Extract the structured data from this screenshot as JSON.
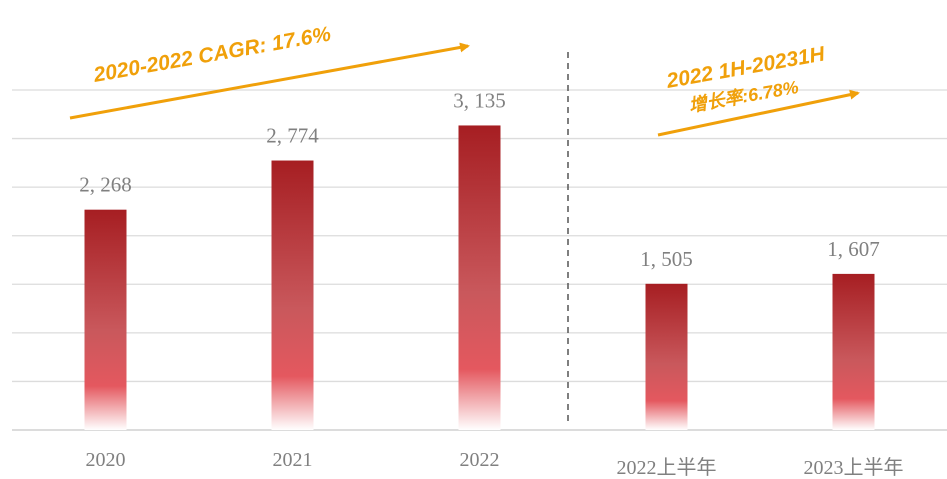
{
  "chart_data": {
    "type": "bar",
    "categories": [
      "2020",
      "2021",
      "2022",
      "2022上半年",
      "2023上半年"
    ],
    "values": [
      2268,
      2774,
      3135,
      1505,
      1607
    ],
    "value_labels": [
      "2, 268",
      "2, 774",
      "3, 135",
      "1, 505",
      "1, 607"
    ],
    "color": "#a61e22",
    "ylim": [
      0,
      3500
    ],
    "yticks": [
      0,
      500,
      1000,
      1500,
      2000,
      2500,
      3000,
      3500
    ],
    "grid": true,
    "annotations": [
      "2020-2022 CAGR: 17.6%",
      "2022 1H-20231H",
      "增长率:6.78%"
    ]
  }
}
